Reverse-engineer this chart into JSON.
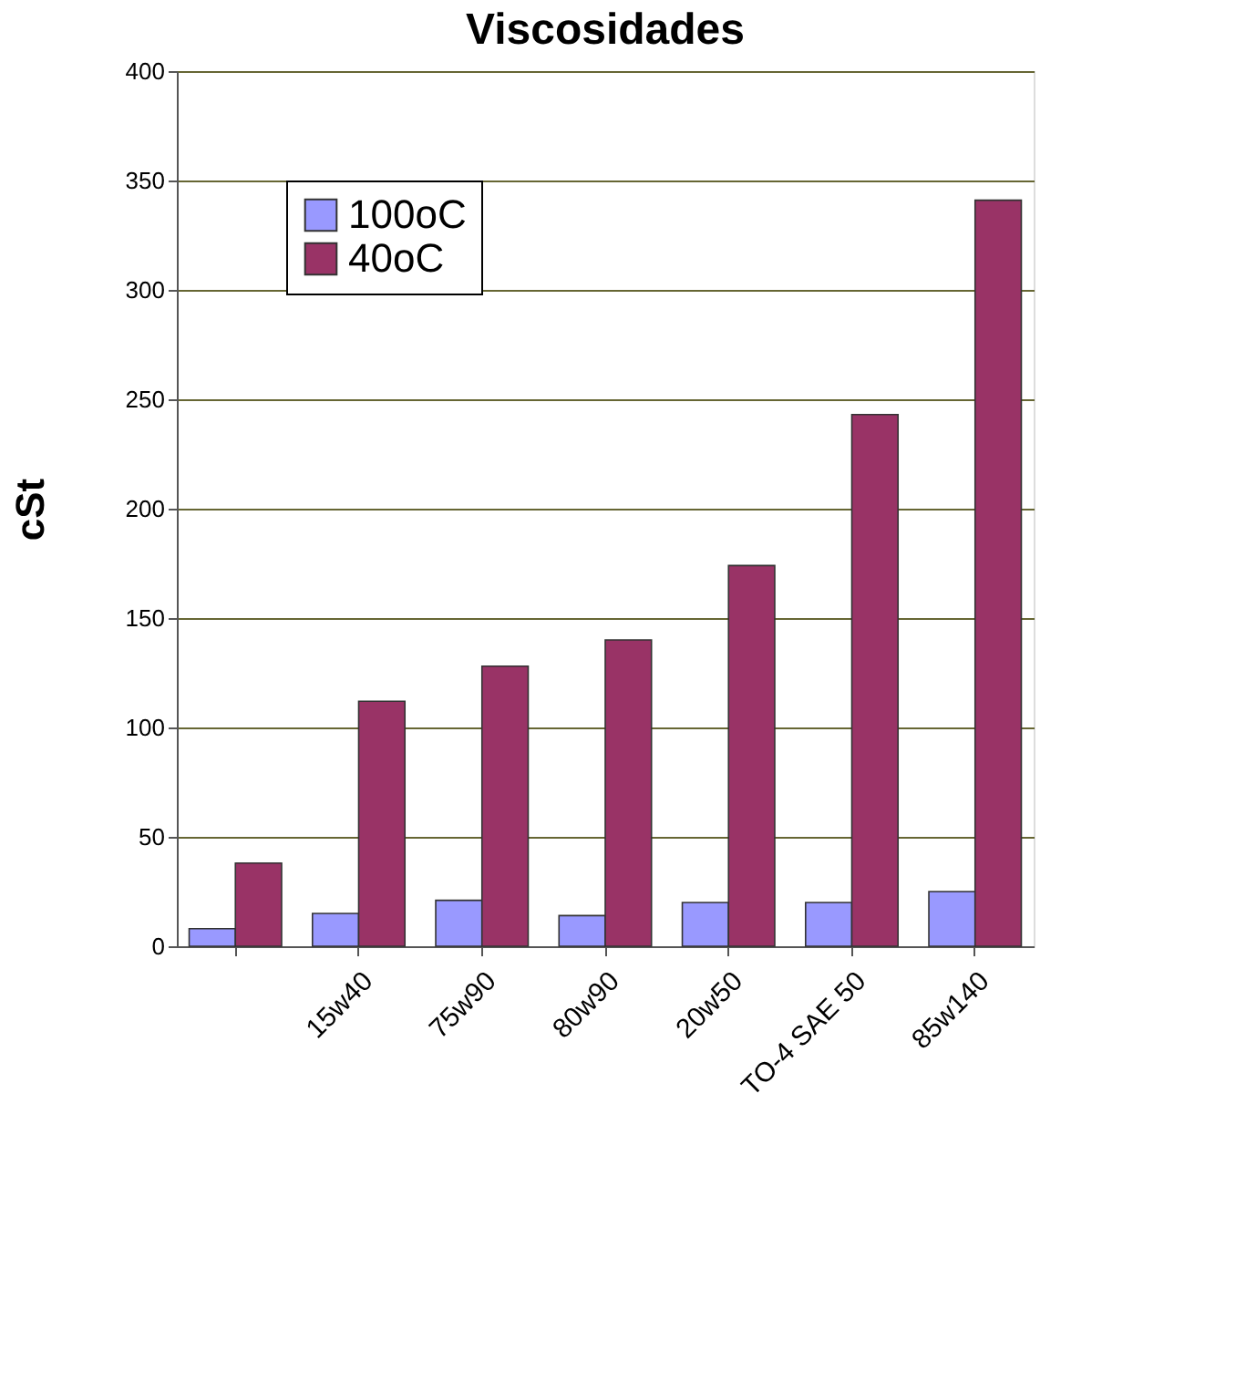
{
  "chart_data": {
    "type": "bar",
    "title": "Viscosidades",
    "ylabel": "cSt",
    "categories": [
      null,
      "15w40",
      "75w90",
      "80w90",
      "20w50",
      "TO-4 SAE 50",
      "85w140"
    ],
    "series": [
      {
        "name": "100oC",
        "color": "#9999ff",
        "values": [
          8,
          15,
          21,
          14,
          20,
          20,
          25
        ]
      },
      {
        "name": "40oC",
        "color": "#993366",
        "values": [
          38,
          112,
          128,
          140,
          174,
          243,
          341
        ]
      }
    ],
    "ylim": [
      0,
      400
    ],
    "yticks": [
      0,
      50,
      100,
      150,
      200,
      250,
      300,
      350,
      400
    ],
    "grid": "y",
    "legend": "top left"
  }
}
